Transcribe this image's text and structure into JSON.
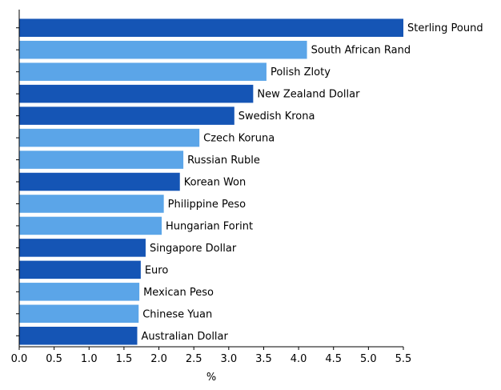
{
  "chart_data": {
    "type": "bar",
    "orientation": "horizontal",
    "categories": [
      "Sterling Pound",
      "South African Rand",
      "Polish Zloty",
      "New Zealand Dollar",
      "Swedish Krona",
      "Czech Koruna",
      "Russian Ruble",
      "Korean Won",
      "Philippine Peso",
      "Hungarian Forint",
      "Singapore Dollar",
      "Euro",
      "Mexican Peso",
      "Chinese Yuan",
      "Australian Dollar"
    ],
    "values": [
      5.5,
      4.12,
      3.54,
      3.35,
      3.08,
      2.58,
      2.35,
      2.3,
      2.07,
      2.04,
      1.81,
      1.74,
      1.72,
      1.71,
      1.69
    ],
    "bar_colors": [
      "#1555b5",
      "#5ba5e8",
      "#5ba5e8",
      "#1555b5",
      "#1555b5",
      "#5ba5e8",
      "#5ba5e8",
      "#1555b5",
      "#5ba5e8",
      "#5ba5e8",
      "#1555b5",
      "#1555b5",
      "#5ba5e8",
      "#5ba5e8",
      "#1555b5"
    ],
    "xlabel": "%",
    "ylabel": "",
    "xlim": [
      0,
      5.5
    ],
    "xticks": [
      "0.0",
      "0.5",
      "1.0",
      "1.5",
      "2.0",
      "2.5",
      "3.0",
      "3.5",
      "4.0",
      "4.5",
      "5.0",
      "5.5"
    ],
    "grid": false,
    "legend": "none"
  }
}
